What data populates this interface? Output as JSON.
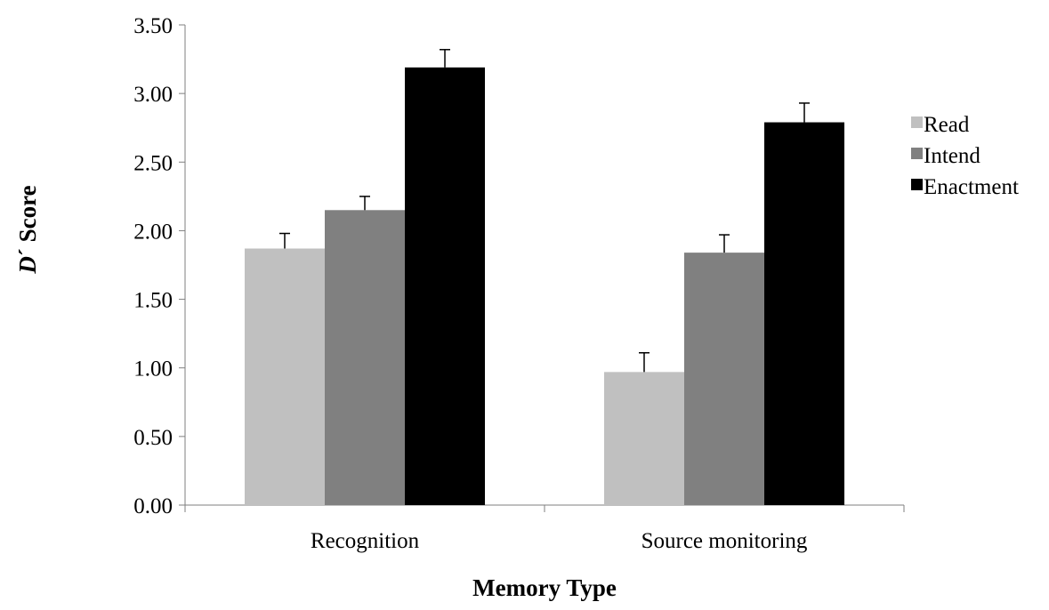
{
  "chart_data": {
    "type": "bar",
    "categories": [
      "Recognition",
      "Source monitoring"
    ],
    "series": [
      {
        "name": "Read",
        "values": [
          1.87,
          0.97
        ],
        "errors": [
          0.11,
          0.14
        ],
        "color": "#c0c0c0"
      },
      {
        "name": "Intend",
        "values": [
          2.15,
          1.84
        ],
        "errors": [
          0.1,
          0.13
        ],
        "color": "#808080"
      },
      {
        "name": "Enactment",
        "values": [
          3.19,
          2.79
        ],
        "errors": [
          0.13,
          0.14
        ],
        "color": "#000000"
      }
    ],
    "xlabel": "Memory Type",
    "ylabel_italic": "D",
    "ylabel_rest": "´ Score",
    "ylim": [
      0,
      3.5
    ],
    "yticks": [
      "0.00",
      "0.50",
      "1.00",
      "1.50",
      "2.00",
      "2.50",
      "3.00",
      "3.50"
    ],
    "grid": false,
    "legend_position": "right"
  }
}
